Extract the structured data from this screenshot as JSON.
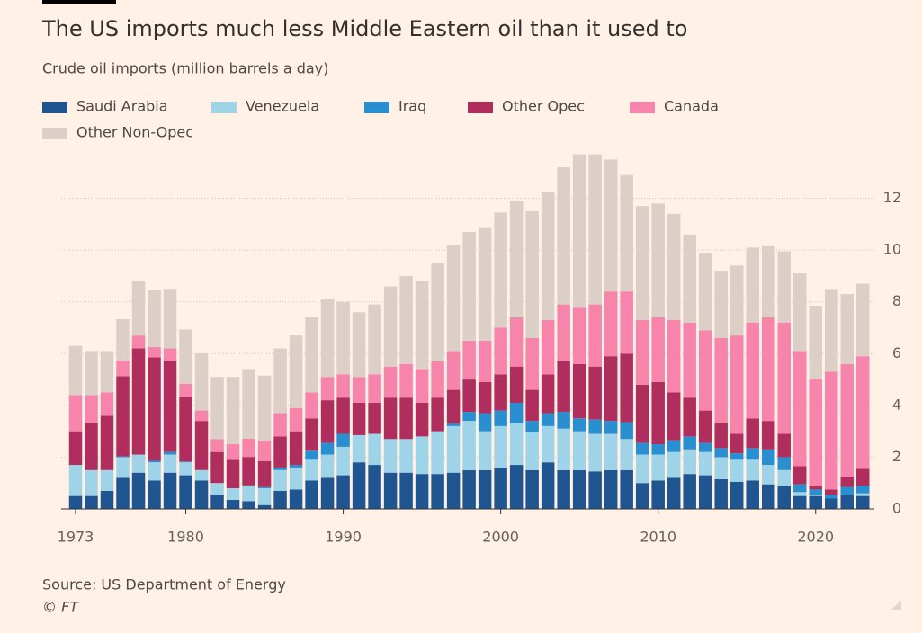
{
  "chart_data": {
    "type": "stacked-bar",
    "title": "The US imports much less Middle Eastern oil than it used to",
    "subtitle": "Crude oil imports (million barrels a day)",
    "source": "Source: US Department of Energy",
    "copyright": "© FT",
    "x": [
      1973,
      1974,
      1975,
      1976,
      1977,
      1978,
      1979,
      1980,
      1981,
      1982,
      1983,
      1984,
      1985,
      1986,
      1987,
      1988,
      1989,
      1990,
      1991,
      1992,
      1993,
      1994,
      1995,
      1996,
      1997,
      1998,
      1999,
      2000,
      2001,
      2002,
      2003,
      2004,
      2005,
      2006,
      2007,
      2008,
      2009,
      2010,
      2011,
      2012,
      2013,
      2014,
      2015,
      2016,
      2017,
      2018,
      2019,
      2020,
      2021,
      2022,
      2023
    ],
    "xlim": [
      1972.2,
      2023.5
    ],
    "xticks": [
      1973,
      1980,
      1990,
      2000,
      2010,
      2020
    ],
    "ylim": [
      0,
      14
    ],
    "yticks": [
      0,
      2,
      4,
      6,
      8,
      10,
      12
    ],
    "grid": true,
    "series": [
      {
        "name": "Saudi Arabia",
        "color": "#1f5591",
        "values": [
          0.5,
          0.5,
          0.7,
          1.2,
          1.4,
          1.1,
          1.4,
          1.3,
          1.1,
          0.55,
          0.35,
          0.3,
          0.15,
          0.7,
          0.75,
          1.1,
          1.2,
          1.3,
          1.8,
          1.7,
          1.4,
          1.4,
          1.35,
          1.35,
          1.4,
          1.5,
          1.5,
          1.6,
          1.7,
          1.5,
          1.8,
          1.5,
          1.5,
          1.45,
          1.5,
          1.5,
          1.0,
          1.1,
          1.2,
          1.35,
          1.3,
          1.15,
          1.05,
          1.1,
          0.95,
          0.9,
          0.5,
          0.5,
          0.4,
          0.55,
          0.5
        ]
      },
      {
        "name": "Venezuela",
        "color": "#9fd4e8",
        "values": [
          1.2,
          1.0,
          0.8,
          0.8,
          0.7,
          0.7,
          0.7,
          0.5,
          0.4,
          0.45,
          0.45,
          0.6,
          0.65,
          0.8,
          0.85,
          0.8,
          0.9,
          1.1,
          1.05,
          1.2,
          1.3,
          1.3,
          1.45,
          1.65,
          1.8,
          1.9,
          1.5,
          1.6,
          1.6,
          1.45,
          1.4,
          1.6,
          1.5,
          1.45,
          1.4,
          1.2,
          1.1,
          1.0,
          1.0,
          0.95,
          0.9,
          0.85,
          0.85,
          0.8,
          0.75,
          0.6,
          0.15,
          0.05,
          0,
          0,
          0.1
        ]
      },
      {
        "name": "Iraq",
        "color": "#2a8fd1",
        "values": [
          0,
          0,
          0,
          0.03,
          0,
          0.06,
          0.1,
          0.03,
          0,
          0,
          0,
          0.01,
          0.05,
          0.1,
          0.1,
          0.35,
          0.45,
          0.5,
          0,
          0,
          0,
          0,
          0,
          0,
          0.1,
          0.35,
          0.7,
          0.6,
          0.8,
          0.45,
          0.5,
          0.65,
          0.5,
          0.55,
          0.5,
          0.65,
          0.45,
          0.4,
          0.45,
          0.5,
          0.35,
          0.35,
          0.25,
          0.45,
          0.6,
          0.5,
          0.3,
          0.2,
          0.15,
          0.3,
          0.3
        ]
      },
      {
        "name": "Other Opec",
        "color": "#b02e5d",
        "values": [
          1.3,
          1.8,
          2.1,
          3.1,
          4.1,
          4.0,
          3.5,
          2.5,
          1.9,
          1.2,
          1.1,
          1.1,
          1.0,
          1.2,
          1.3,
          1.25,
          1.65,
          1.4,
          1.25,
          1.2,
          1.6,
          1.6,
          1.3,
          1.3,
          1.3,
          1.25,
          1.2,
          1.4,
          1.4,
          1.2,
          1.5,
          1.95,
          2.1,
          2.05,
          2.5,
          2.65,
          2.25,
          2.4,
          1.85,
          1.5,
          1.25,
          0.95,
          0.75,
          1.15,
          1.1,
          0.9,
          0.7,
          0.15,
          0.2,
          0.4,
          0.65
        ]
      },
      {
        "name": "Canada",
        "color": "#f684ab",
        "values": [
          1.4,
          1.1,
          0.9,
          0.6,
          0.5,
          0.4,
          0.5,
          0.5,
          0.4,
          0.5,
          0.6,
          0.7,
          0.8,
          0.9,
          0.9,
          1.0,
          0.9,
          0.9,
          1.0,
          1.1,
          1.2,
          1.3,
          1.3,
          1.4,
          1.5,
          1.5,
          1.6,
          1.8,
          1.9,
          2.0,
          2.1,
          2.2,
          2.2,
          2.4,
          2.5,
          2.4,
          2.5,
          2.5,
          2.8,
          2.9,
          3.1,
          3.3,
          3.8,
          3.7,
          4.0,
          4.3,
          4.45,
          4.1,
          4.55,
          4.35,
          4.35
        ]
      },
      {
        "name": "Other Non-Opec",
        "color": "#dccfc8",
        "values": [
          1.9,
          1.7,
          1.6,
          1.6,
          2.1,
          2.2,
          2.3,
          2.1,
          2.2,
          2.4,
          2.6,
          2.7,
          2.5,
          2.5,
          2.8,
          2.9,
          3.0,
          2.8,
          2.5,
          2.7,
          3.1,
          3.4,
          3.4,
          3.8,
          4.1,
          4.2,
          4.35,
          4.45,
          4.5,
          4.9,
          4.95,
          5.3,
          5.9,
          5.8,
          5.1,
          4.5,
          4.4,
          4.4,
          4.1,
          3.4,
          3.0,
          2.6,
          2.7,
          2.9,
          2.75,
          2.75,
          3.0,
          2.85,
          3.2,
          2.7,
          2.8
        ]
      }
    ]
  }
}
